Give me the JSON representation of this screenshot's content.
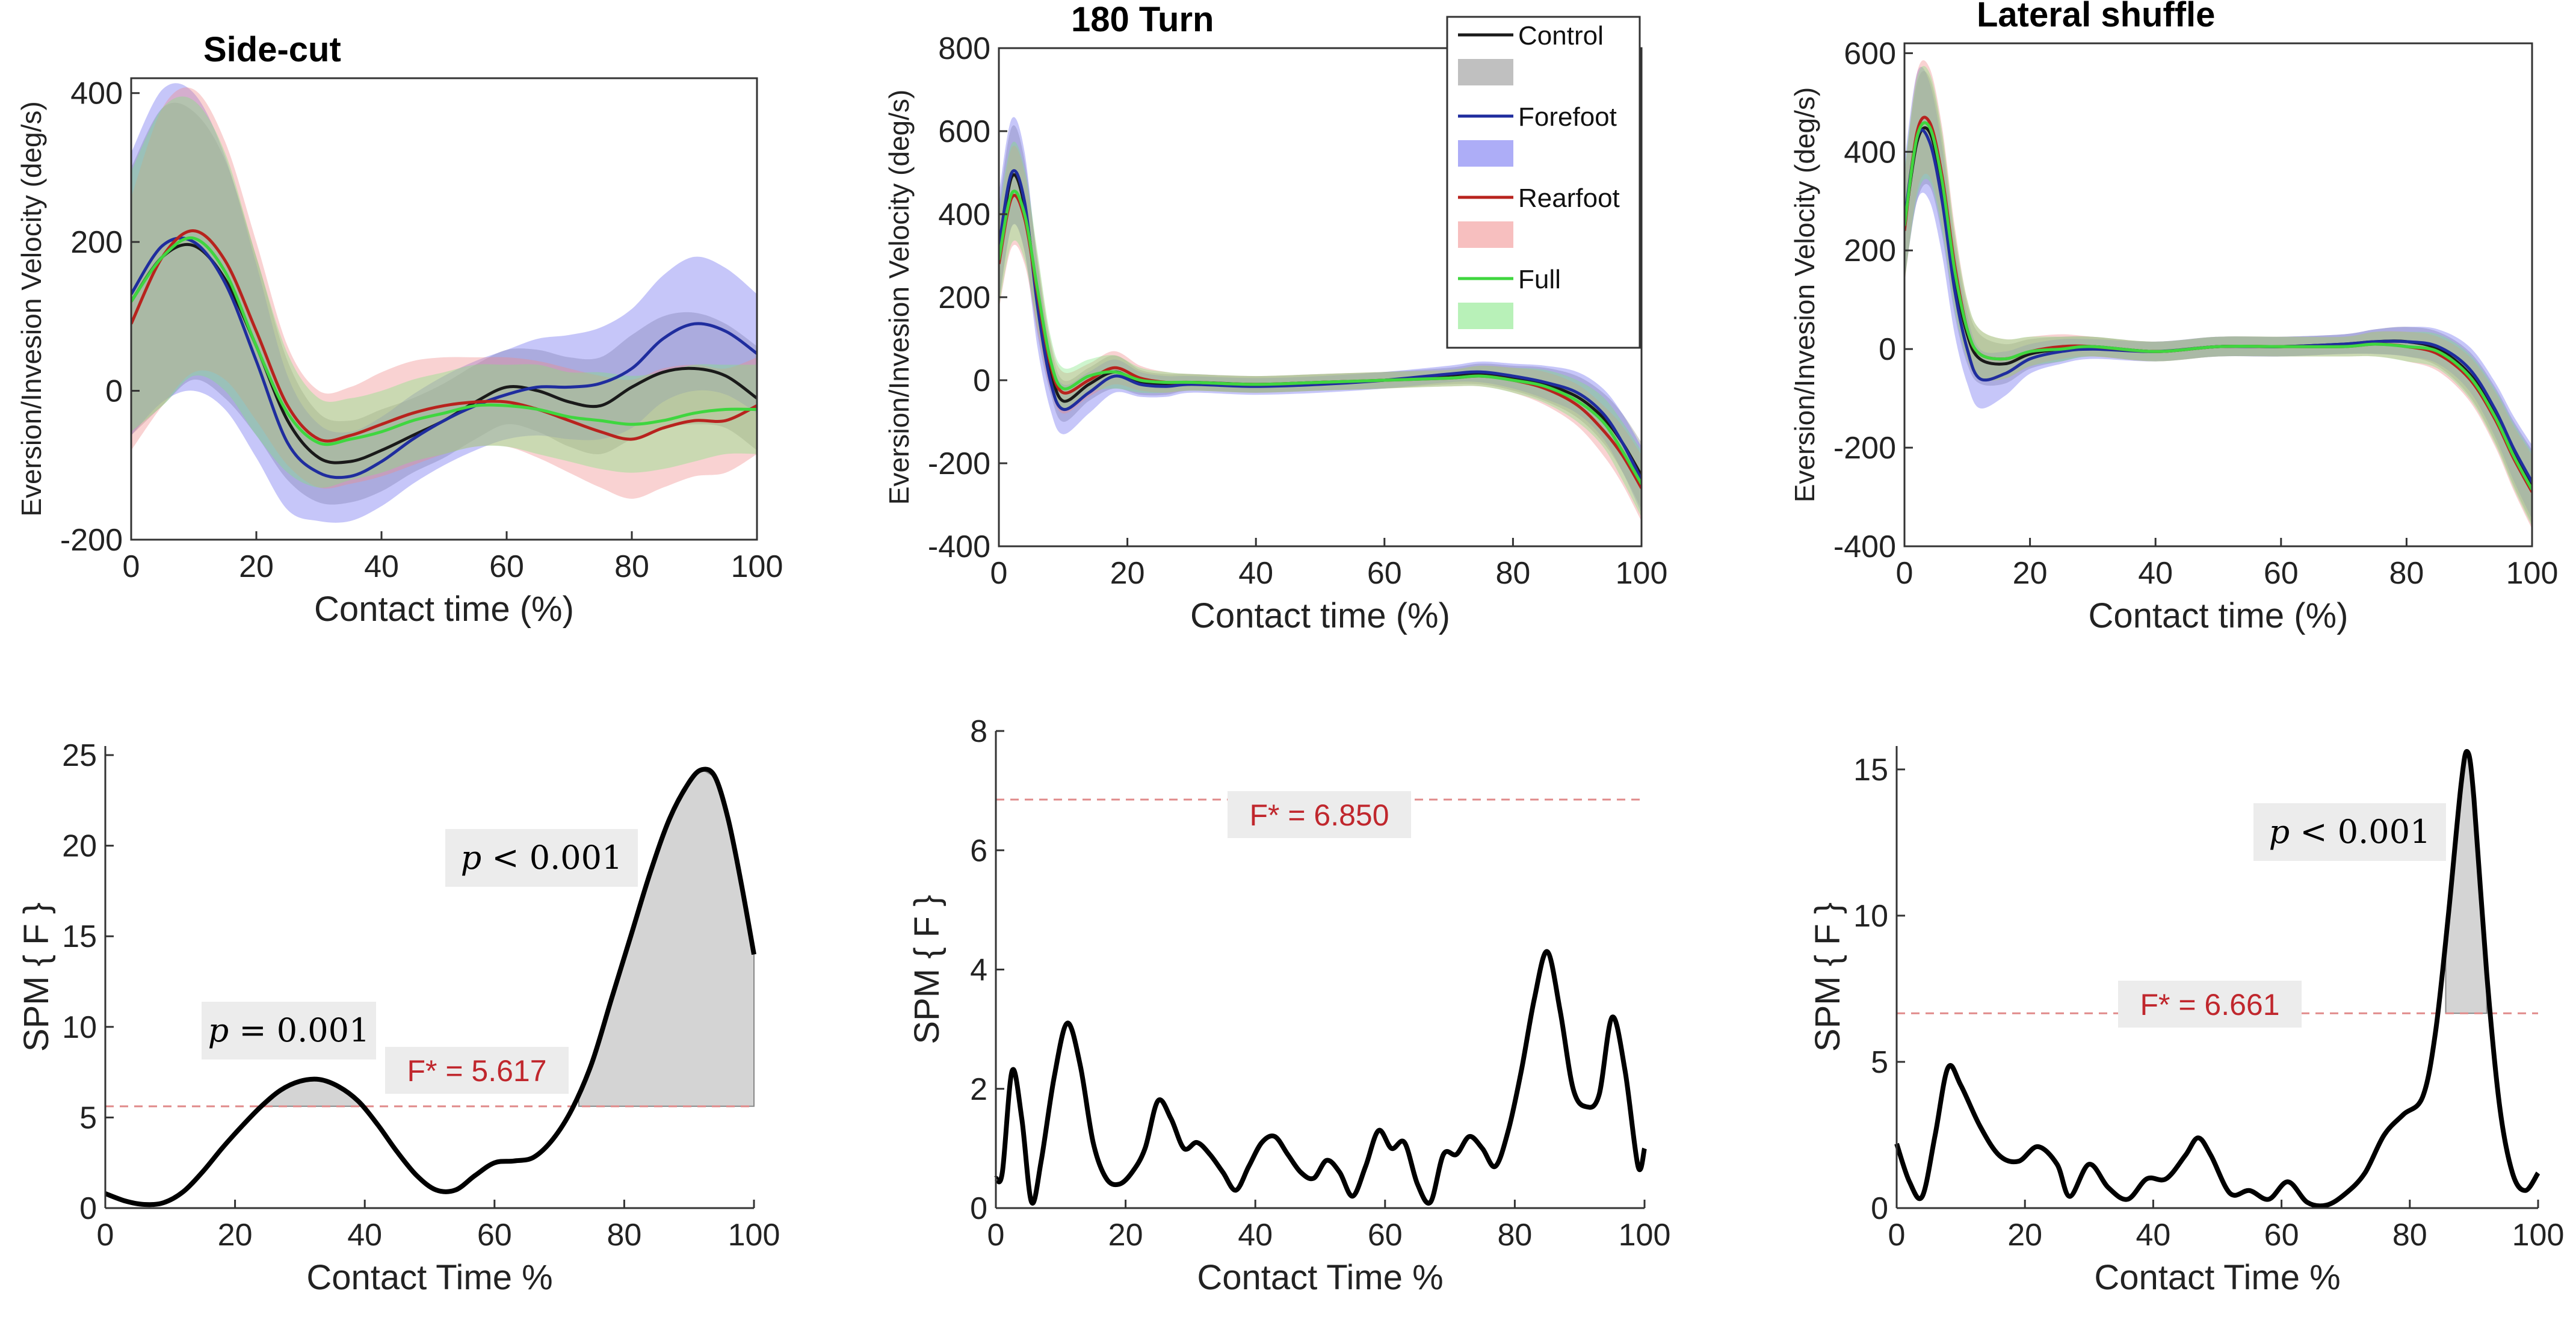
{
  "chart_data": [
    {
      "type": "line",
      "panel": "velocity",
      "title": "Side-cut",
      "xlabel": "Contact time (%)",
      "ylabel": "Eversion/Invesion Velocity (deg/s)",
      "xlim": [
        0,
        100
      ],
      "ylim": [
        -200,
        420
      ],
      "xticks": [
        0,
        20,
        40,
        60,
        80,
        100
      ],
      "yticks": [
        -200,
        0,
        200,
        400
      ],
      "x": [
        0,
        5,
        10,
        15,
        20,
        25,
        30,
        35,
        40,
        45,
        50,
        55,
        60,
        65,
        70,
        75,
        80,
        85,
        90,
        95,
        100
      ],
      "series": [
        {
          "name": "Control",
          "color": "#1a1a1a",
          "fill": "#8c8c8c",
          "mean": [
            120,
            180,
            195,
            150,
            60,
            -40,
            -90,
            -95,
            -80,
            -60,
            -40,
            -15,
            5,
            0,
            -15,
            -20,
            5,
            25,
            30,
            20,
            -10
          ],
          "sd": [
            180,
            200,
            180,
            160,
            120,
            80,
            60,
            55,
            55,
            50,
            50,
            50,
            50,
            55,
            60,
            65,
            70,
            75,
            75,
            70,
            70
          ]
        },
        {
          "name": "Forefoot",
          "color": "#1f2d9e",
          "fill": "#6a6af0",
          "mean": [
            130,
            195,
            200,
            145,
            40,
            -70,
            -110,
            -115,
            -95,
            -65,
            -40,
            -20,
            -5,
            5,
            5,
            10,
            30,
            70,
            90,
            80,
            50
          ],
          "sd": [
            190,
            210,
            200,
            170,
            130,
            90,
            65,
            60,
            60,
            60,
            60,
            60,
            60,
            65,
            70,
            75,
            80,
            85,
            90,
            85,
            80
          ]
        },
        {
          "name": "Rearfoot",
          "color": "#b8231e",
          "fill": "#f08a8a",
          "mean": [
            90,
            180,
            215,
            175,
            80,
            -20,
            -65,
            -60,
            -45,
            -30,
            -20,
            -15,
            -15,
            -25,
            -40,
            -55,
            -65,
            -50,
            -40,
            -40,
            -20
          ],
          "sd": [
            170,
            200,
            190,
            160,
            120,
            80,
            65,
            65,
            70,
            70,
            65,
            60,
            60,
            65,
            70,
            75,
            80,
            80,
            75,
            70,
            65
          ]
        },
        {
          "name": "Full",
          "color": "#3fd63f",
          "fill": "#7ee67e",
          "mean": [
            120,
            180,
            205,
            160,
            60,
            -30,
            -70,
            -65,
            -55,
            -40,
            -30,
            -20,
            -20,
            -25,
            -35,
            -40,
            -45,
            -40,
            -30,
            -25,
            -25
          ],
          "sd": [
            175,
            200,
            185,
            160,
            120,
            80,
            60,
            55,
            55,
            55,
            55,
            55,
            55,
            60,
            60,
            65,
            65,
            65,
            65,
            60,
            60
          ]
        }
      ]
    },
    {
      "type": "line",
      "panel": "velocity",
      "title": "180 Turn",
      "xlabel": "Contact time (%)",
      "ylabel": "Eversion/Invesion Velocity (deg/s)",
      "xlim": [
        0,
        100
      ],
      "ylim": [
        -400,
        800
      ],
      "xticks": [
        0,
        20,
        40,
        60,
        80,
        100
      ],
      "yticks": [
        -400,
        -200,
        0,
        200,
        400,
        600,
        800
      ],
      "x": [
        0,
        2,
        4,
        6,
        8,
        10,
        14,
        18,
        22,
        26,
        30,
        40,
        50,
        60,
        70,
        75,
        80,
        85,
        90,
        94,
        97,
        100
      ],
      "series": [
        {
          "name": "Control",
          "color": "#1a1a1a",
          "fill": "#8c8c8c",
          "mean": [
            300,
            490,
            420,
            200,
            30,
            -50,
            -10,
            20,
            -5,
            -10,
            -5,
            -10,
            -5,
            0,
            10,
            15,
            5,
            -10,
            -40,
            -90,
            -150,
            -230
          ],
          "sd": [
            120,
            120,
            110,
            90,
            60,
            50,
            40,
            40,
            30,
            25,
            20,
            20,
            20,
            20,
            20,
            25,
            30,
            40,
            50,
            60,
            70,
            80
          ]
        },
        {
          "name": "Forefoot",
          "color": "#1f2d9e",
          "fill": "#6a6af0",
          "mean": [
            320,
            500,
            430,
            180,
            0,
            -70,
            -30,
            10,
            -10,
            -15,
            -10,
            -15,
            -10,
            0,
            15,
            20,
            10,
            -5,
            -30,
            -80,
            -150,
            -240
          ],
          "sd": [
            130,
            130,
            120,
            100,
            70,
            60,
            50,
            40,
            30,
            25,
            20,
            20,
            20,
            20,
            20,
            25,
            30,
            40,
            50,
            60,
            70,
            80
          ]
        },
        {
          "name": "Rearfoot",
          "color": "#b8231e",
          "fill": "#f08a8a",
          "mean": [
            280,
            440,
            390,
            210,
            40,
            -30,
            0,
            30,
            5,
            -5,
            -5,
            -10,
            -5,
            0,
            5,
            10,
            0,
            -20,
            -60,
            -120,
            -180,
            -260
          ],
          "sd": [
            110,
            120,
            110,
            90,
            60,
            50,
            40,
            40,
            30,
            25,
            20,
            20,
            20,
            20,
            20,
            25,
            30,
            40,
            50,
            60,
            70,
            80
          ]
        },
        {
          "name": "Full",
          "color": "#3fd63f",
          "fill": "#7ee67e",
          "mean": [
            290,
            450,
            400,
            220,
            50,
            -20,
            10,
            20,
            0,
            -5,
            -5,
            -10,
            -5,
            0,
            5,
            10,
            0,
            -15,
            -50,
            -100,
            -170,
            -250
          ],
          "sd": [
            115,
            120,
            110,
            90,
            60,
            50,
            40,
            40,
            30,
            25,
            20,
            20,
            20,
            20,
            20,
            25,
            30,
            40,
            50,
            60,
            70,
            80
          ]
        }
      ],
      "legend": {
        "placement": "top-right",
        "entries": [
          "Control",
          "Forefoot",
          "Rearfoot",
          "Full"
        ]
      }
    },
    {
      "type": "line",
      "panel": "velocity",
      "title": "Lateral shuffle",
      "xlabel": "Contact time (%)",
      "ylabel": "Eversion/Invesion Velocity (deg/s)",
      "xlim": [
        0,
        100
      ],
      "ylim": [
        -400,
        620
      ],
      "xticks": [
        0,
        20,
        40,
        60,
        80,
        100
      ],
      "yticks": [
        -400,
        -200,
        0,
        200,
        400,
        600
      ],
      "x": [
        0,
        2,
        4,
        6,
        8,
        10,
        12,
        16,
        20,
        25,
        30,
        40,
        50,
        60,
        70,
        75,
        80,
        85,
        90,
        94,
        97,
        100
      ],
      "series": [
        {
          "name": "Control",
          "color": "#1a1a1a",
          "fill": "#8c8c8c",
          "mean": [
            250,
            420,
            440,
            330,
            150,
            30,
            -20,
            -30,
            -10,
            0,
            5,
            -5,
            5,
            5,
            10,
            15,
            15,
            0,
            -50,
            -130,
            -210,
            -280
          ],
          "sd": [
            110,
            120,
            110,
            100,
            80,
            60,
            50,
            40,
            30,
            25,
            20,
            20,
            20,
            20,
            20,
            25,
            30,
            35,
            45,
            55,
            65,
            75
          ]
        },
        {
          "name": "Forefoot",
          "color": "#1f2d9e",
          "fill": "#6a6af0",
          "mean": [
            260,
            430,
            420,
            300,
            120,
            0,
            -60,
            -50,
            -20,
            -5,
            0,
            -5,
            5,
            5,
            10,
            15,
            15,
            5,
            -40,
            -120,
            -200,
            -270
          ],
          "sd": [
            120,
            130,
            120,
            110,
            90,
            70,
            60,
            45,
            30,
            25,
            20,
            20,
            20,
            20,
            20,
            25,
            30,
            35,
            45,
            55,
            65,
            75
          ]
        },
        {
          "name": "Rearfoot",
          "color": "#b8231e",
          "fill": "#f08a8a",
          "mean": [
            240,
            440,
            460,
            350,
            170,
            40,
            -10,
            -20,
            -5,
            5,
            5,
            -5,
            5,
            5,
            5,
            10,
            5,
            -10,
            -60,
            -140,
            -220,
            -290
          ],
          "sd": [
            110,
            120,
            110,
            100,
            80,
            60,
            50,
            40,
            30,
            25,
            20,
            20,
            20,
            20,
            20,
            25,
            30,
            35,
            45,
            55,
            65,
            75
          ]
        },
        {
          "name": "Full",
          "color": "#3fd63f",
          "fill": "#7ee67e",
          "mean": [
            250,
            430,
            450,
            340,
            160,
            40,
            -10,
            -20,
            -5,
            0,
            5,
            -5,
            5,
            5,
            5,
            10,
            5,
            -5,
            -55,
            -135,
            -215,
            -285
          ],
          "sd": [
            115,
            120,
            110,
            100,
            80,
            60,
            50,
            40,
            30,
            25,
            20,
            20,
            20,
            20,
            20,
            25,
            30,
            35,
            45,
            55,
            65,
            75
          ]
        }
      ]
    },
    {
      "type": "line",
      "panel": "spm",
      "title": "",
      "xlabel": "Contact Time %",
      "ylabel": "SPM { F }",
      "xlim": [
        0,
        100
      ],
      "ylim": [
        0,
        25.5
      ],
      "xticks": [
        0,
        20,
        40,
        60,
        80,
        100
      ],
      "yticks": [
        0,
        5,
        10,
        15,
        20,
        25
      ],
      "threshold": 5.617,
      "threshold_label": "F* = 5.617",
      "x": [
        0,
        3,
        6,
        9,
        12,
        15,
        18,
        21,
        24,
        27,
        30,
        33,
        36,
        39,
        42,
        45,
        48,
        51,
        54,
        57,
        60,
        63,
        66,
        69,
        72,
        75,
        78,
        81,
        84,
        87,
        90,
        92,
        94,
        96,
        98,
        100
      ],
      "y": [
        0.8,
        0.4,
        0.2,
        0.3,
        0.9,
        2.0,
        3.3,
        4.5,
        5.6,
        6.5,
        7.0,
        7.1,
        6.7,
        5.9,
        4.6,
        3.1,
        1.8,
        1.0,
        1.0,
        1.8,
        2.5,
        2.6,
        2.8,
        3.8,
        5.5,
        8.0,
        11.5,
        15.0,
        18.5,
        21.5,
        23.5,
        24.2,
        23.8,
        21.5,
        18.0,
        14.0
      ],
      "clusters": [
        {
          "x_start": 23,
          "x_end": 40,
          "p_label": "p = 0.001",
          "p_italic": "p",
          "p_rest": " = 0.001"
        },
        {
          "x_start": 73,
          "x_end": 100,
          "p_label": "p < 0.001",
          "p_italic": "p",
          "p_rest": " < 0.001"
        }
      ]
    },
    {
      "type": "line",
      "panel": "spm",
      "title": "",
      "xlabel": "Contact Time %",
      "ylabel": "SPM { F }",
      "xlim": [
        0,
        100
      ],
      "ylim": [
        0,
        8
      ],
      "xticks": [
        0,
        20,
        40,
        60,
        80,
        100
      ],
      "yticks": [
        0,
        2,
        4,
        6,
        8
      ],
      "threshold": 6.85,
      "threshold_label": "F* = 6.850",
      "x": [
        0,
        1,
        2.5,
        4,
        5.5,
        7,
        9,
        11,
        13,
        15,
        17,
        19,
        21,
        23,
        25,
        27,
        29,
        31,
        33,
        35,
        37,
        39,
        41,
        43,
        45,
        47,
        49,
        51,
        53,
        55,
        57,
        59,
        61,
        63,
        65,
        67,
        69,
        71,
        73,
        75,
        77,
        79,
        81,
        83,
        85,
        87,
        89,
        91,
        93,
        95,
        97,
        99,
        100
      ],
      "y": [
        0.5,
        0.6,
        2.3,
        1.5,
        0.1,
        0.8,
        2.2,
        3.1,
        2.4,
        1.1,
        0.5,
        0.4,
        0.6,
        1.0,
        1.8,
        1.5,
        1.0,
        1.1,
        0.9,
        0.6,
        0.3,
        0.7,
        1.1,
        1.2,
        0.9,
        0.6,
        0.5,
        0.8,
        0.6,
        0.2,
        0.7,
        1.3,
        1.0,
        1.1,
        0.4,
        0.1,
        0.9,
        0.9,
        1.2,
        1.0,
        0.7,
        1.3,
        2.3,
        3.5,
        4.3,
        3.3,
        2.0,
        1.7,
        1.9,
        3.2,
        2.3,
        0.7,
        1.0
      ],
      "clusters": []
    },
    {
      "type": "line",
      "panel": "spm",
      "title": "",
      "xlabel": "Contact Time %",
      "ylabel": "SPM { F }",
      "xlim": [
        0,
        100
      ],
      "ylim": [
        0,
        15.8
      ],
      "xticks": [
        0,
        20,
        40,
        60,
        80,
        100
      ],
      "yticks": [
        0,
        5,
        10,
        15
      ],
      "threshold": 6.661,
      "threshold_label": "F* = 6.661",
      "x": [
        0,
        2,
        4,
        6,
        8,
        10,
        13,
        16,
        19,
        22,
        25,
        27,
        30,
        33,
        36,
        39,
        42,
        45,
        47,
        49,
        52,
        55,
        58,
        61,
        64,
        67,
        70,
        73,
        76,
        79,
        82,
        84,
        86,
        88,
        89,
        90,
        92,
        94,
        96,
        98,
        100
      ],
      "y": [
        2.2,
        0.9,
        0.4,
        2.5,
        4.8,
        4.2,
        2.8,
        1.8,
        1.6,
        2.1,
        1.5,
        0.4,
        1.5,
        0.7,
        0.3,
        1.0,
        1.0,
        1.8,
        2.4,
        1.8,
        0.5,
        0.6,
        0.3,
        0.9,
        0.2,
        0.1,
        0.5,
        1.2,
        2.5,
        3.2,
        3.8,
        6.0,
        10.0,
        14.5,
        15.6,
        14.0,
        8.0,
        3.5,
        1.2,
        0.6,
        1.2
      ],
      "clusters": [
        {
          "x_start": 85.6,
          "x_end": 92,
          "p_label": "p < 0.001",
          "p_italic": "p",
          "p_rest": " < 0.001"
        }
      ]
    }
  ]
}
